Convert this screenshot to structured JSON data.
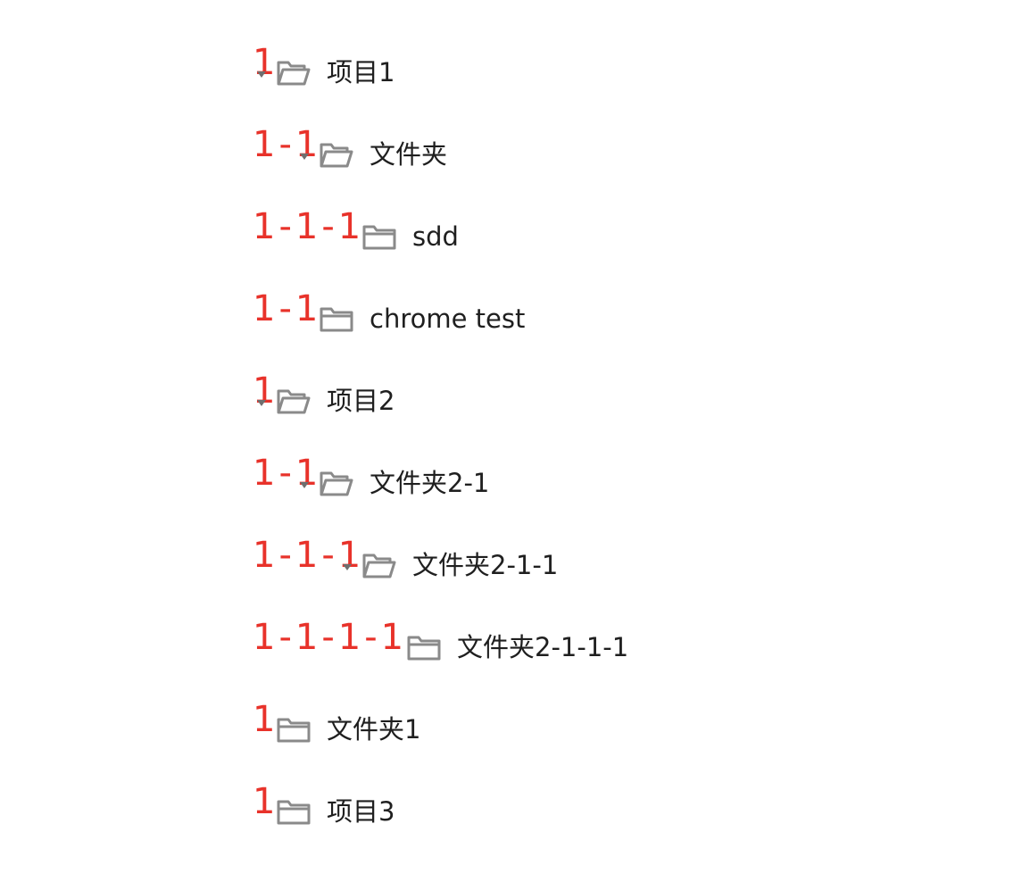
{
  "tree": {
    "nodes": [
      {
        "marker": "1",
        "label": "项目1",
        "expanded": true,
        "icon": "folder-open-icon"
      },
      {
        "marker": "1-1",
        "label": "文件夹",
        "expanded": true,
        "icon": "folder-open-icon"
      },
      {
        "marker": "1-1-1",
        "label": "sdd",
        "expanded": false,
        "icon": "folder-icon"
      },
      {
        "marker": "1-1",
        "label": "chrome test",
        "expanded": false,
        "icon": "folder-icon"
      },
      {
        "marker": "1",
        "label": "项目2",
        "expanded": true,
        "icon": "folder-open-icon"
      },
      {
        "marker": "1-1",
        "label": "文件夹2-1",
        "expanded": true,
        "icon": "folder-open-icon"
      },
      {
        "marker": "1-1-1",
        "label": "文件夹2-1-1",
        "expanded": true,
        "icon": "folder-open-icon"
      },
      {
        "marker": "1-1-1-1",
        "label": "文件夹2-1-1-1",
        "expanded": false,
        "icon": "folder-icon"
      },
      {
        "marker": "1",
        "label": "文件夹1",
        "expanded": false,
        "icon": "folder-icon"
      },
      {
        "marker": "1",
        "label": "项目3",
        "expanded": false,
        "icon": "folder-icon"
      }
    ]
  },
  "colors": {
    "marker": "#e8322a",
    "icon": "#8a8a8a",
    "caret": "#6f6f6f",
    "text": "#1f1f1f"
  }
}
